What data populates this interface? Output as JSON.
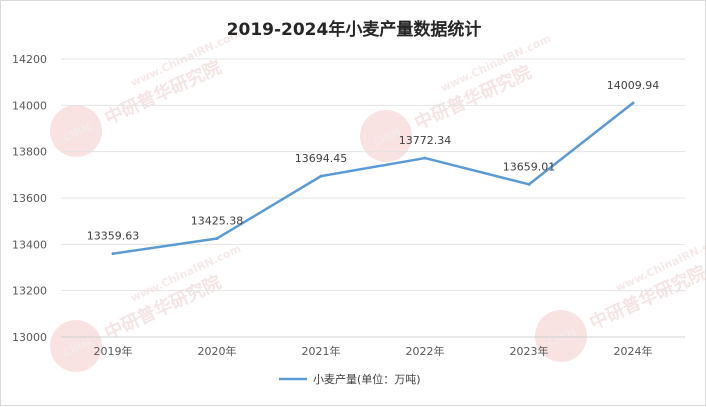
{
  "chart_data": {
    "type": "line",
    "title": "2019-2024年小麦产量数据统计",
    "categories": [
      "2019年",
      "2020年",
      "2021年",
      "2022年",
      "2023年",
      "2024年"
    ],
    "series": [
      {
        "name": "小麦产量(单位：万吨)",
        "values": [
          13359.63,
          13425.38,
          13694.45,
          13772.34,
          13659.01,
          14009.94
        ],
        "labels": [
          "13359.63",
          "13425.38",
          "13694.45",
          "13772.34",
          "13659.01",
          "14009.94"
        ],
        "color": "#5b9bd5"
      }
    ],
    "ylim": [
      13000,
      14200
    ],
    "yticks": [
      "13000",
      "13200",
      "13400",
      "13600",
      "13800",
      "14000",
      "14200"
    ],
    "grid": true,
    "legend": "bottom"
  },
  "watermark": {
    "badge": "CIRN",
    "brand": "中研普华研究院",
    "url": "www.ChinaIRN.com"
  }
}
